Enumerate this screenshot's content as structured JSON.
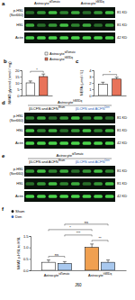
{
  "blots": [
    {
      "label": "a",
      "groups": [
        {
          "text": "Astrocyte",
          "sup": "tdTomato",
          "color": "#000000"
        },
        {
          "text": "Astrocyte",
          "sup": "hM3Dq",
          "color": "#000000"
        }
      ],
      "rows": [
        {
          "label": [
            "p-HSL",
            "(Ser660)"
          ],
          "kd": "81 KD"
        },
        {
          "label": [
            "HSL"
          ],
          "kd": "81 KD"
        },
        {
          "label": [
            "Actin"
          ],
          "kd": "42 KD"
        }
      ]
    },
    {
      "label": "d",
      "header": {
        "text": "Astrocyte",
        "sup": "hM3Dq"
      },
      "groups": [
        {
          "text": "βLCFN and ACFN",
          "sup": "Sham",
          "color": "#000000"
        },
        {
          "text": "βLCFN and ACFN",
          "sup": "Den",
          "color": "#2b5fb8"
        }
      ],
      "rows": [
        {
          "label": [
            "p-HSL",
            "(Ser660)"
          ],
          "kd": "81 KD"
        },
        {
          "label": [
            "HSL"
          ],
          "kd": "81 KD"
        },
        {
          "label": [
            "Actin"
          ],
          "kd": "42 KD"
        }
      ]
    },
    {
      "label": "e",
      "header": {
        "text": "Astrocyte",
        "sup": "tdTomato"
      },
      "groups": [
        {
          "text": "βLCFN and ACFN",
          "sup": "Sham",
          "color": "#000000"
        },
        {
          "text": "βLCFN and ACFN",
          "sup": "Den",
          "color": "#2b5fb8"
        }
      ],
      "rows": [
        {
          "label": [
            "p-HSL",
            "(Ser660)"
          ],
          "kd": "81 KD"
        },
        {
          "label": [
            "HSL"
          ],
          "kd": "81 KD"
        },
        {
          "label": [
            "Actin"
          ],
          "kd": "42 KD"
        }
      ]
    }
  ],
  "legend_bc": {
    "entries": [
      {
        "text": "Astrocyte",
        "sup": "tdTomato",
        "color": "#ffffff"
      },
      {
        "text": "Astrocyte",
        "sup": "hM3Dq",
        "color": "#e8735a"
      }
    ]
  },
  "chart_data": [
    {
      "label": "b",
      "type": "bar",
      "y_label": "NMAT glycerol (nmol / mg)",
      "categories": [
        null,
        null
      ],
      "values": [
        10,
        15
      ],
      "error": [
        1.5,
        2
      ],
      "colors": [
        "#ffffff",
        "#e8735a"
      ],
      "ylim": [
        0,
        20
      ],
      "yticks": [
        0,
        5,
        10,
        15,
        20
      ],
      "annotations": [
        {
          "text": "*"
        }
      ]
    },
    {
      "label": "c",
      "type": "bar",
      "y_label": "NEFA (μmol / L)",
      "categories": [
        null,
        null
      ],
      "values": [
        1.8,
        2.6
      ],
      "error": [
        0.3,
        0.3
      ],
      "colors": [
        "#ffffff",
        "#e8735a"
      ],
      "ylim": [
        0,
        4
      ],
      "yticks": [
        0,
        1,
        2,
        3,
        4
      ],
      "annotations": [
        {
          "text": "*"
        }
      ]
    },
    {
      "label": "f",
      "type": "bar",
      "y_label": "NMAT p-HSL to HSL",
      "x_label": "J60",
      "categories": [
        {
          "text": "Astrocyte",
          "sup": "tdTomato"
        },
        {
          "text": "Astrocyte",
          "sup": "hM3Dq"
        }
      ],
      "series": [
        {
          "name": "Sham",
          "color": "#000000",
          "colors": [
            "#ffffff",
            "#f0a050"
          ],
          "marker": "circle",
          "values": [
            0.35,
            1.0
          ],
          "error": [
            0.1,
            0.15
          ]
        },
        {
          "name": "Den",
          "color": "#2b5fb8",
          "colors": [
            "#a8c8ee",
            "#a8c8ee"
          ],
          "marker": "circle",
          "values": [
            0.3,
            0.35
          ],
          "error": [
            0.08,
            0.1
          ]
        }
      ],
      "legend": "top-left",
      "ylim": [
        0,
        1.5
      ],
      "yticks": [
        {
          "value": 0,
          "label": "0.0"
        },
        {
          "value": 0.5,
          "label": "0.5"
        },
        {
          "value": 1,
          "label": "1.0"
        },
        {
          "value": 1.5,
          "label": "1.5"
        }
      ],
      "annotations": [
        {
          "text": "ns",
          "between": [
            [
              "tdTomato",
              "Sham"
            ],
            [
              "tdTomato",
              "Den"
            ]
          ]
        },
        {
          "text": "**",
          "between": [
            [
              "hM3Dq",
              "Sham"
            ],
            [
              "hM3Dq",
              "Den"
            ]
          ]
        },
        {
          "text": "***",
          "between": [
            [
              "tdTomato",
              "Den"
            ],
            [
              "hM3Dq",
              "Sham"
            ]
          ]
        },
        {
          "text": "*",
          "between": [
            [
              "tdTomato",
              "Sham"
            ],
            [
              "hM3Dq",
              "Sham"
            ]
          ]
        },
        {
          "text": "ns",
          "between": [
            [
              "tdTomato",
              "Den"
            ],
            [
              "hM3Dq",
              "Den"
            ]
          ]
        }
      ]
    }
  ]
}
